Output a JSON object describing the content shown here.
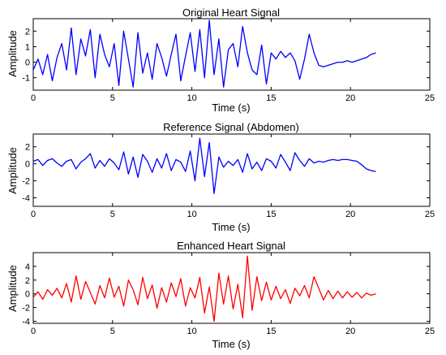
{
  "chart_data": [
    {
      "type": "line",
      "title": "Original Heart Signal",
      "xlabel": "Time (s)",
      "ylabel": "Amplitude",
      "xlim": [
        0,
        25
      ],
      "ylim": [
        -1.8,
        2.8
      ],
      "xticks": [
        0,
        5,
        10,
        15,
        20,
        25
      ],
      "yticks": [
        -1,
        0,
        1,
        2
      ],
      "color": "#0000ff",
      "series": [
        {
          "x": [
            0,
            0.3,
            0.6,
            0.9,
            1.2,
            1.5,
            1.8,
            2.1,
            2.4,
            2.7,
            3.0,
            3.3,
            3.6,
            3.9,
            4.2,
            4.5,
            4.8,
            5.1,
            5.4,
            5.7,
            6.0,
            6.3,
            6.6,
            6.9,
            7.2,
            7.5,
            7.8,
            8.1,
            8.4,
            8.7,
            9.0,
            9.3,
            9.6,
            9.9,
            10.2,
            10.5,
            10.8,
            11.1,
            11.4,
            11.7,
            12.0,
            12.3,
            12.6,
            12.9,
            13.2,
            13.5,
            13.8,
            14.1,
            14.4,
            14.7,
            15.0,
            15.3,
            15.6,
            15.9,
            16.2,
            16.5,
            16.8,
            17.1,
            17.4,
            17.7,
            18.0,
            18.3,
            18.6,
            18.9,
            19.2,
            19.5,
            19.8,
            20.1,
            20.4,
            20.7,
            21.0,
            21.3,
            21.6
          ],
          "values": [
            -0.5,
            0.2,
            -0.8,
            0.5,
            -1.2,
            0.3,
            1.2,
            -0.5,
            2.2,
            -0.8,
            1.5,
            0.4,
            2.1,
            -1.0,
            1.8,
            0.5,
            -0.3,
            1.2,
            -1.5,
            2.0,
            0.2,
            -1.6,
            1.9,
            -0.7,
            0.6,
            -1.1,
            1.2,
            0.3,
            -0.9,
            0.5,
            1.8,
            -1.2,
            0.4,
            1.9,
            -0.6,
            2.1,
            -1.0,
            2.7,
            -0.8,
            1.5,
            -1.6,
            0.8,
            1.2,
            -0.3,
            2.3,
            0.6,
            -0.5,
            -0.8,
            1.1,
            -1.4,
            0.6,
            0.2,
            0.7,
            0.3,
            0.6,
            0.1,
            -1.1,
            0.2,
            1.8,
            0.6,
            -0.2,
            -0.3,
            -0.2,
            -0.1,
            0.0,
            0.0,
            0.1,
            0.0,
            0.1,
            0.2,
            0.3,
            0.5,
            0.6
          ]
        }
      ]
    },
    {
      "type": "line",
      "title": "Reference Signal (Abdomen)",
      "xlabel": "Time (s)",
      "ylabel": "Amplitude",
      "xlim": [
        0,
        25
      ],
      "ylim": [
        -5,
        3.5
      ],
      "xticks": [
        0,
        5,
        10,
        15,
        20,
        25
      ],
      "yticks": [
        -4,
        -2,
        0,
        2
      ],
      "color": "#0000ff",
      "series": [
        {
          "x": [
            0,
            0.3,
            0.6,
            0.9,
            1.2,
            1.5,
            1.8,
            2.1,
            2.4,
            2.7,
            3.0,
            3.3,
            3.6,
            3.9,
            4.2,
            4.5,
            4.8,
            5.1,
            5.4,
            5.7,
            6.0,
            6.3,
            6.6,
            6.9,
            7.2,
            7.5,
            7.8,
            8.1,
            8.4,
            8.7,
            9.0,
            9.3,
            9.6,
            9.9,
            10.2,
            10.5,
            10.8,
            11.1,
            11.4,
            11.7,
            12.0,
            12.3,
            12.6,
            12.9,
            13.2,
            13.5,
            13.8,
            14.1,
            14.4,
            14.7,
            15.0,
            15.3,
            15.6,
            15.9,
            16.2,
            16.5,
            16.8,
            17.1,
            17.4,
            17.7,
            18.0,
            18.3,
            18.6,
            18.9,
            19.2,
            19.5,
            19.8,
            20.1,
            20.4,
            20.7,
            21.0,
            21.3,
            21.6
          ],
          "values": [
            0.3,
            0.5,
            -0.2,
            0.4,
            0.6,
            0.1,
            -0.3,
            0.3,
            0.5,
            -0.6,
            0.2,
            0.6,
            1.2,
            -0.5,
            0.4,
            -0.3,
            0.6,
            0.1,
            -0.7,
            1.4,
            -1.2,
            0.8,
            -1.6,
            1.1,
            0.3,
            -1.0,
            0.6,
            -0.5,
            1.2,
            -0.8,
            0.5,
            0.2,
            -0.9,
            1.5,
            -2.0,
            3.0,
            -1.5,
            2.5,
            -3.5,
            0.8,
            -0.4,
            0.3,
            -0.2,
            0.5,
            -1.0,
            1.2,
            -0.6,
            0.2,
            -0.8,
            0.6,
            0.3,
            -0.5,
            1.1,
            0.2,
            -0.8,
            1.3,
            0.4,
            -0.3,
            0.6,
            0.1,
            0.3,
            0.2,
            0.4,
            0.5,
            0.4,
            0.5,
            0.5,
            0.4,
            0.3,
            -0.1,
            -0.6,
            -0.8,
            -0.9
          ]
        }
      ]
    },
    {
      "type": "line",
      "title": "Enhanced Heart Signal",
      "xlabel": "Time (s)",
      "ylabel": "Amplitude",
      "xlim": [
        0,
        25
      ],
      "ylim": [
        -4.3,
        6
      ],
      "xticks": [
        0,
        5,
        10,
        15,
        20,
        25
      ],
      "yticks": [
        -4,
        -2,
        0,
        2,
        4
      ],
      "color": "#ff0000",
      "series": [
        {
          "x": [
            0,
            0.3,
            0.6,
            0.9,
            1.2,
            1.5,
            1.8,
            2.1,
            2.4,
            2.7,
            3.0,
            3.3,
            3.6,
            3.9,
            4.2,
            4.5,
            4.8,
            5.1,
            5.4,
            5.7,
            6.0,
            6.3,
            6.6,
            6.9,
            7.2,
            7.5,
            7.8,
            8.1,
            8.4,
            8.7,
            9.0,
            9.3,
            9.6,
            9.9,
            10.2,
            10.5,
            10.8,
            11.1,
            11.4,
            11.7,
            12.0,
            12.3,
            12.6,
            12.9,
            13.2,
            13.5,
            13.8,
            14.1,
            14.4,
            14.7,
            15.0,
            15.3,
            15.6,
            15.9,
            16.2,
            16.5,
            16.8,
            17.1,
            17.4,
            17.7,
            18.0,
            18.3,
            18.6,
            18.9,
            19.2,
            19.5,
            19.8,
            20.1,
            20.4,
            20.7,
            21.0,
            21.3,
            21.6
          ],
          "values": [
            -0.5,
            0.3,
            -0.8,
            0.6,
            -0.2,
            0.8,
            -0.6,
            1.5,
            -1.2,
            2.6,
            -0.8,
            1.8,
            0.2,
            -1.5,
            1.2,
            -0.6,
            2.3,
            -0.5,
            1.1,
            -1.8,
            2.0,
            0.6,
            -1.6,
            2.4,
            -0.7,
            1.3,
            -2.1,
            0.9,
            -1.2,
            1.6,
            -0.4,
            2.2,
            -1.8,
            0.9,
            -0.6,
            2.4,
            -2.8,
            1.0,
            -4.0,
            3.0,
            -1.5,
            2.6,
            -2.2,
            1.4,
            -3.5,
            5.5,
            -2.4,
            2.5,
            -1.0,
            1.7,
            -0.9,
            1.1,
            -0.7,
            0.6,
            -1.4,
            0.8,
            -0.3,
            1.2,
            -0.6,
            2.5,
            0.8,
            -0.9,
            0.5,
            -0.7,
            0.4,
            -0.6,
            0.3,
            -0.5,
            0.2,
            -0.6,
            0.1,
            -0.2,
            0.0
          ]
        }
      ]
    }
  ]
}
